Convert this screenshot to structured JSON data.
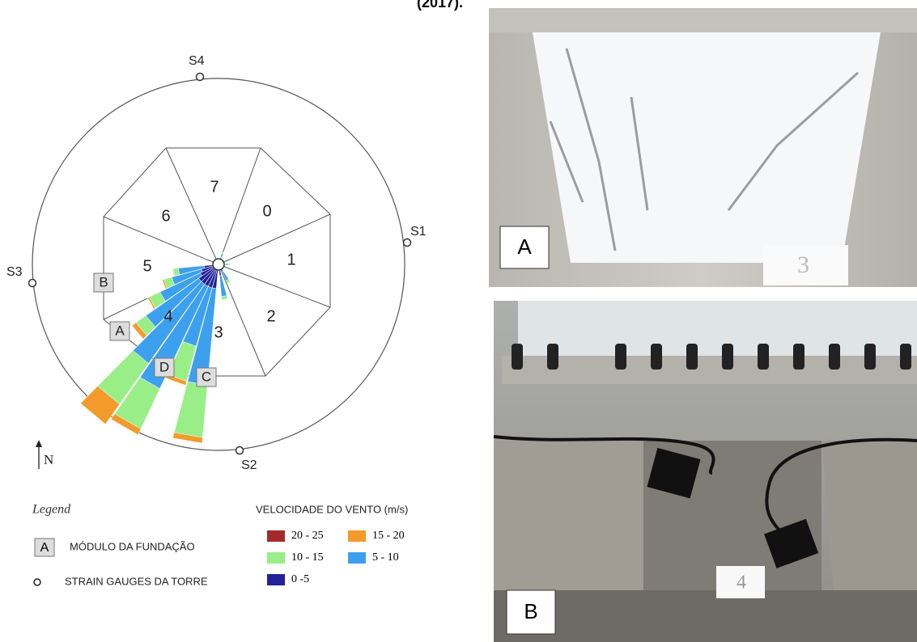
{
  "caption": "(2017).",
  "diagram": {
    "stations": [
      "S4",
      "S1",
      "S3",
      "S2"
    ],
    "sectors": [
      "7",
      "0",
      "1",
      "2",
      "3",
      "4",
      "5",
      "6"
    ],
    "modules": [
      "B",
      "A",
      "D",
      "C"
    ],
    "north": "N"
  },
  "legend": {
    "title": "Legend",
    "module_key": "A",
    "module_label": "MÓDULO DA FUNDAÇÃO",
    "gauge_label": "STRAIN GAUGES DA TORRE",
    "speed_title": "VELOCIDADE DO VENTO (m/s)",
    "speeds": [
      "20 - 25",
      "15 - 20",
      "10 - 15",
      "5 - 10",
      "0 -5"
    ]
  },
  "photos": {
    "a": "A",
    "b": "B",
    "tag_a": "3",
    "tag_b": "4"
  }
}
